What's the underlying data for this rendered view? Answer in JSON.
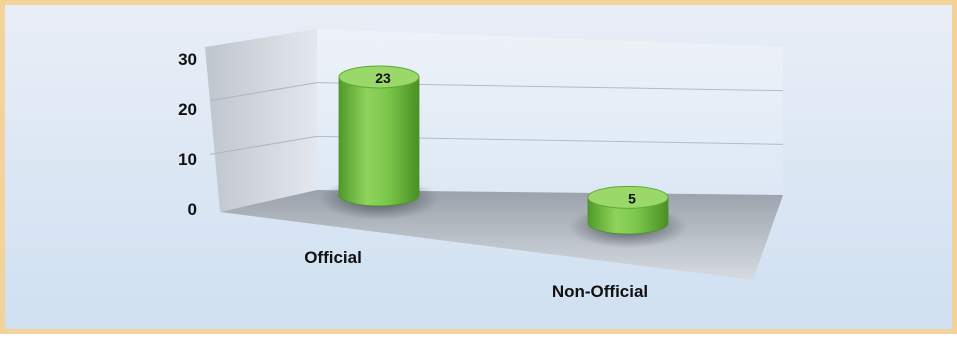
{
  "chart_data": {
    "type": "bar",
    "style": "3d-cylinder",
    "categories": [
      "Official",
      "Non-Official"
    ],
    "values": [
      23,
      5
    ],
    "data_labels": [
      "23",
      "5"
    ],
    "yticks": [
      "0",
      "10",
      "20",
      "30"
    ],
    "ylim": [
      0,
      30
    ],
    "grid": true,
    "legend": false,
    "title": "",
    "xlabel": "",
    "ylabel": ""
  },
  "colors": {
    "bar_fill": "#7cc84c",
    "bar_top": "#9ad86a",
    "bar_dark": "#4f9a28",
    "frame_border": "#f4d39a",
    "background": "#dce7f4"
  }
}
